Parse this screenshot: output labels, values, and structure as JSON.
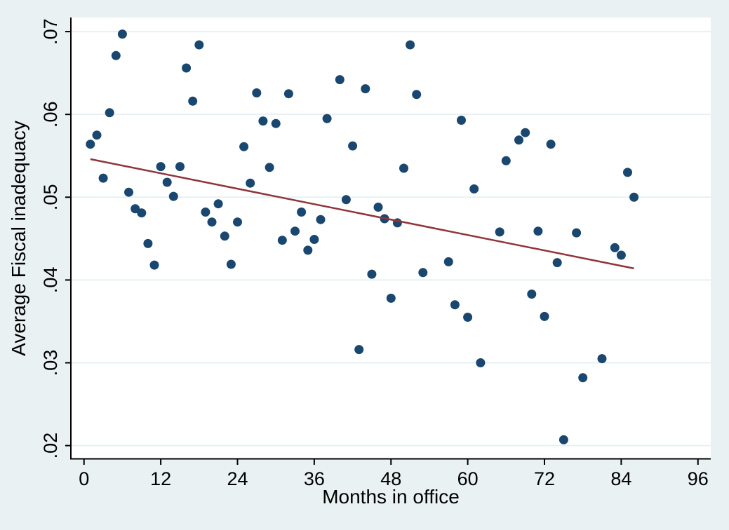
{
  "chart_data": {
    "type": "scatter",
    "title": "",
    "xlabel": "Months in office",
    "ylabel": "Average Fiscal inadequacy",
    "xlim": [
      -2,
      98
    ],
    "ylim": [
      0.0184,
      0.0717
    ],
    "x_ticks": [
      0,
      12,
      24,
      36,
      48,
      60,
      72,
      84,
      96
    ],
    "x_tick_labels": [
      "0",
      "12",
      "24",
      "36",
      "48",
      "60",
      "72",
      "84",
      "96"
    ],
    "y_ticks": [
      0.02,
      0.03,
      0.04,
      0.05,
      0.06,
      0.07
    ],
    "y_tick_labels": [
      ".02",
      ".03",
      ".04",
      ".05",
      ".06",
      ".07"
    ],
    "grid": "horizontal-only",
    "legend": "none",
    "series": [
      {
        "name": "Average Fiscal inadequacy (scatter)",
        "type": "scatter",
        "points": [
          [
            1,
            0.0564
          ],
          [
            2,
            0.0575
          ],
          [
            3,
            0.0523
          ],
          [
            4,
            0.0602
          ],
          [
            5,
            0.0671
          ],
          [
            6,
            0.0697
          ],
          [
            7,
            0.0506
          ],
          [
            8,
            0.0486
          ],
          [
            9,
            0.0481
          ],
          [
            10,
            0.0444
          ],
          [
            11,
            0.0418
          ],
          [
            12,
            0.0537
          ],
          [
            13,
            0.0518
          ],
          [
            14,
            0.0501
          ],
          [
            15,
            0.0537
          ],
          [
            16,
            0.0656
          ],
          [
            17,
            0.0616
          ],
          [
            18,
            0.0684
          ],
          [
            19,
            0.0482
          ],
          [
            20,
            0.047
          ],
          [
            21,
            0.0492
          ],
          [
            22,
            0.0453
          ],
          [
            23,
            0.0419
          ],
          [
            24,
            0.047
          ],
          [
            25,
            0.0561
          ],
          [
            26,
            0.0517
          ],
          [
            27,
            0.0626
          ],
          [
            28,
            0.0592
          ],
          [
            29,
            0.0536
          ],
          [
            30,
            0.0589
          ],
          [
            31,
            0.0448
          ],
          [
            32,
            0.0625
          ],
          [
            33,
            0.0459
          ],
          [
            34,
            0.0482
          ],
          [
            35,
            0.0436
          ],
          [
            36,
            0.0449
          ],
          [
            37,
            0.0473
          ],
          [
            38,
            0.0595
          ],
          [
            40,
            0.0642
          ],
          [
            41,
            0.0497
          ],
          [
            42,
            0.0562
          ],
          [
            43,
            0.0316
          ],
          [
            44,
            0.0631
          ],
          [
            45,
            0.0407
          ],
          [
            46,
            0.0488
          ],
          [
            47,
            0.0474
          ],
          [
            48,
            0.0378
          ],
          [
            49,
            0.0469
          ],
          [
            50,
            0.0535
          ],
          [
            51,
            0.0684
          ],
          [
            52,
            0.0624
          ],
          [
            53,
            0.0409
          ],
          [
            57,
            0.0422
          ],
          [
            58,
            0.037
          ],
          [
            59,
            0.0593
          ],
          [
            60,
            0.0355
          ],
          [
            61,
            0.051
          ],
          [
            62,
            0.03
          ],
          [
            65,
            0.0458
          ],
          [
            66,
            0.0544
          ],
          [
            68,
            0.0569
          ],
          [
            69,
            0.0578
          ],
          [
            70,
            0.0383
          ],
          [
            71,
            0.0459
          ],
          [
            72,
            0.0356
          ],
          [
            73,
            0.0564
          ],
          [
            74,
            0.0421
          ],
          [
            75,
            0.0207
          ],
          [
            77,
            0.0457
          ],
          [
            78,
            0.0282
          ],
          [
            81,
            0.0305
          ],
          [
            83,
            0.0439
          ],
          [
            84,
            0.043
          ],
          [
            85,
            0.053
          ],
          [
            86,
            0.05
          ]
        ]
      },
      {
        "name": "Fitted line",
        "type": "line",
        "points": [
          [
            1,
            0.0546
          ],
          [
            86,
            0.0414
          ]
        ]
      }
    ],
    "colors": {
      "figure_background": "#eaf1f2",
      "plot_background": "#ffffff",
      "gridline": "#e7f0f4",
      "marker": "#1a476f",
      "fit_line": "#90353b",
      "axis_line": "#000000",
      "text": "#000000"
    },
    "marker_radius_px": 6.5
  }
}
